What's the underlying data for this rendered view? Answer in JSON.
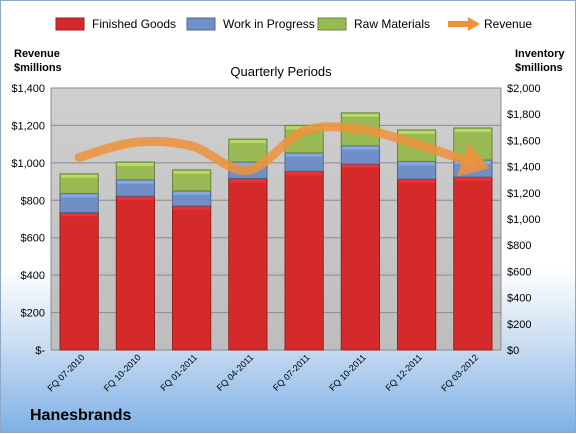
{
  "chart_data": {
    "type": "bar",
    "stacked": true,
    "title": "Quarterly Periods",
    "categories": [
      "FQ 07-2010",
      "FQ 10-2010",
      "FQ 01-2011",
      "FQ 04-2011",
      "FQ 07-2011",
      "FQ 10-2011",
      "FQ 12-2011",
      "FQ 03-2012"
    ],
    "series": [
      {
        "name": "Finished Goods",
        "axis": "right",
        "color": "#d42a2a",
        "values": [
          1050,
          1175,
          1100,
          1310,
          1365,
          1420,
          1305,
          1320
        ]
      },
      {
        "name": "Work in Progress",
        "axis": "right",
        "color": "#6f8fc6",
        "values": [
          145,
          125,
          115,
          125,
          140,
          140,
          135,
          130
        ]
      },
      {
        "name": "Raw Materials",
        "axis": "right",
        "color": "#98b954",
        "values": [
          150,
          135,
          160,
          175,
          210,
          250,
          240,
          245
        ]
      }
    ],
    "line_series": {
      "name": "Revenue",
      "axis": "left",
      "color": "#f0923a",
      "values": [
        1030,
        1110,
        1090,
        960,
        1170,
        1180,
        1100,
        1000
      ]
    },
    "left_axis": {
      "title_line1": "Revenue",
      "title_line2": "$millions",
      "ylim": [
        0,
        1400
      ],
      "ticks": [
        {
          "value": 0,
          "label": "$-"
        },
        {
          "value": 200,
          "label": "$200"
        },
        {
          "value": 400,
          "label": "$400"
        },
        {
          "value": 600,
          "label": "$600"
        },
        {
          "value": 800,
          "label": "$800"
        },
        {
          "value": 1000,
          "label": "$1,000"
        },
        {
          "value": 1200,
          "label": "$1,200"
        },
        {
          "value": 1400,
          "label": "$1,400"
        }
      ]
    },
    "right_axis": {
      "title_line1": "Inventory",
      "title_line2": "$millions",
      "ylim": [
        0,
        2000
      ],
      "ticks": [
        {
          "value": 0,
          "label": "$0"
        },
        {
          "value": 200,
          "label": "$200"
        },
        {
          "value": 400,
          "label": "$400"
        },
        {
          "value": 600,
          "label": "$600"
        },
        {
          "value": 800,
          "label": "$800"
        },
        {
          "value": 1000,
          "label": "$1,000"
        },
        {
          "value": 1200,
          "label": "$1,200"
        },
        {
          "value": 1400,
          "label": "$1,400"
        },
        {
          "value": 1600,
          "label": "$1,600"
        },
        {
          "value": 1800,
          "label": "$1,800"
        },
        {
          "value": 2000,
          "label": "$2,000"
        }
      ]
    },
    "grid": true,
    "legend_position": "top"
  },
  "company": "Hanesbrands"
}
